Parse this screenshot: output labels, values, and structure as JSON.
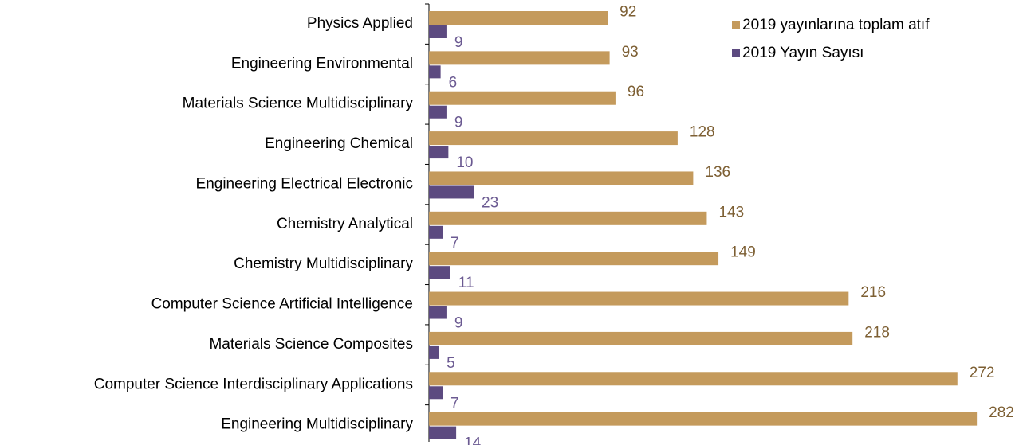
{
  "chart_data": {
    "type": "bar",
    "orientation": "horizontal",
    "categories": [
      "Physics Applied",
      "Engineering Environmental",
      "Materials Science Multidisciplinary",
      "Engineering Chemical",
      "Engineering Electrical Electronic",
      "Chemistry Analytical",
      "Chemistry Multidisciplinary",
      "Computer Science Artificial Intelligence",
      "Materials Science Composites",
      "Computer Science Interdisciplinary Applications",
      "Engineering Multidisciplinary"
    ],
    "series": [
      {
        "name": "2019 yayınlarına toplam atıf",
        "color": "#c49a5c",
        "label_color": "#7d5f33",
        "values": [
          92,
          93,
          96,
          128,
          136,
          143,
          149,
          216,
          218,
          272,
          282
        ]
      },
      {
        "name": "2019 Yayın Sayısı",
        "color": "#5c4a80",
        "label_color": "#6b5a92",
        "values": [
          9,
          6,
          9,
          10,
          23,
          7,
          11,
          9,
          5,
          7,
          14
        ]
      }
    ],
    "xlim": [
      0,
      300
    ],
    "legend": "top-right"
  }
}
